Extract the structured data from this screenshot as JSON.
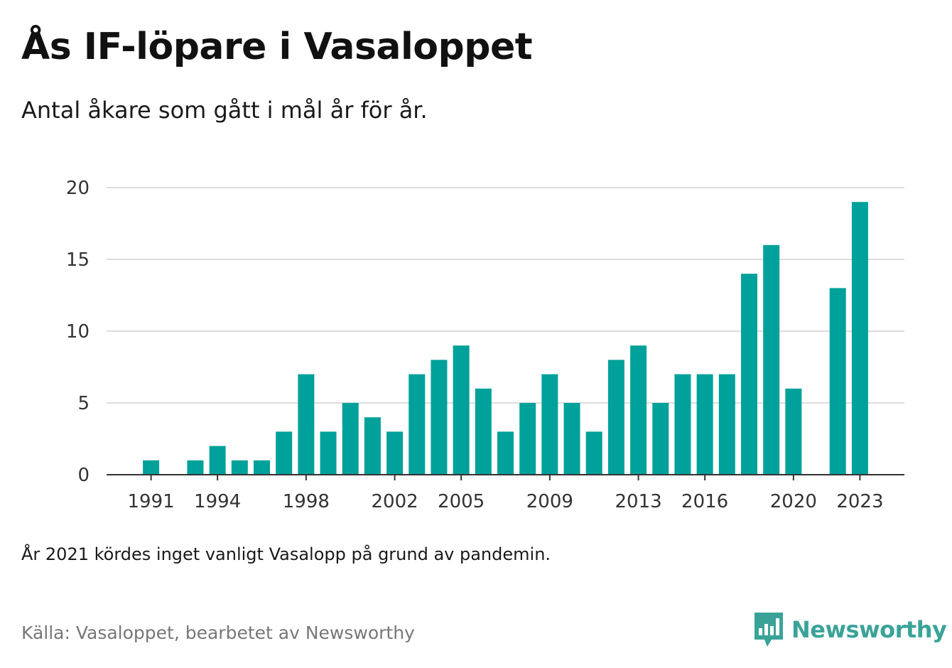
{
  "header": {
    "title": "Ås IF-löpare i Vasaloppet",
    "subtitle": "Antal åkare som gått i mål år för år."
  },
  "footer": {
    "note": "År 2021 kördes inget vanligt Vasalopp på grund av pandemin.",
    "source": "Källa: Vasaloppet, bearbetet av Newsworthy",
    "logo_text": "Newsworthy",
    "logo_icon": "newsworthy-bar-chart-icon"
  },
  "colors": {
    "bar": "#00a19a",
    "grid": "#dddddd",
    "axis": "#333333",
    "logo": "#3aa398"
  },
  "chart_data": {
    "type": "bar",
    "categories": [
      "1991",
      "1992",
      "1993",
      "1994",
      "1995",
      "1996",
      "1997",
      "1998",
      "1999",
      "2000",
      "2001",
      "2002",
      "2003",
      "2004",
      "2005",
      "2006",
      "2007",
      "2008",
      "2009",
      "2010",
      "2011",
      "2012",
      "2013",
      "2014",
      "2015",
      "2016",
      "2017",
      "2018",
      "2019",
      "2020",
      "2021",
      "2022",
      "2023"
    ],
    "values": [
      1,
      0,
      1,
      2,
      1,
      1,
      3,
      7,
      3,
      5,
      4,
      3,
      7,
      8,
      9,
      6,
      3,
      5,
      7,
      5,
      3,
      8,
      9,
      5,
      7,
      7,
      7,
      14,
      16,
      6,
      0,
      13,
      19
    ],
    "x_tick_labels": [
      "1991",
      "1994",
      "1998",
      "2002",
      "2005",
      "2009",
      "2013",
      "2016",
      "2020",
      "2023"
    ],
    "y_ticks": [
      "0",
      "5",
      "10",
      "15",
      "20"
    ],
    "ylim": [
      0,
      20
    ],
    "grid": true,
    "legend": "none"
  }
}
